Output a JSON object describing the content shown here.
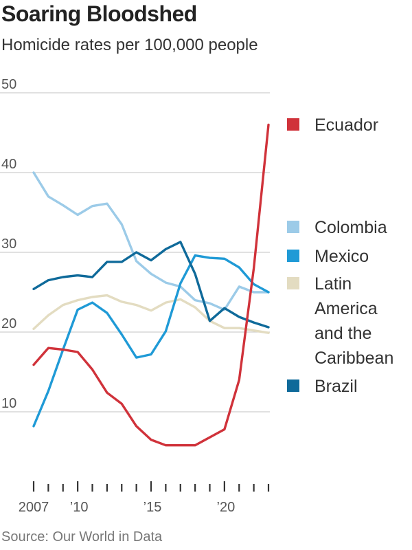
{
  "header": {
    "title": "Soaring Bloodshed",
    "subtitle": "Homicide rates per 100,000 people"
  },
  "footer": {
    "source": "Source: Our World in Data"
  },
  "chart_data": {
    "type": "line",
    "title": "Soaring Bloodshed",
    "subtitle": "Homicide rates per 100,000 people",
    "xlabel": "",
    "ylabel": "",
    "x": [
      2007,
      2008,
      2009,
      2010,
      2011,
      2012,
      2013,
      2014,
      2015,
      2016,
      2017,
      2018,
      2019,
      2020,
      2021,
      2022,
      2023
    ],
    "xlim": [
      2007,
      2023
    ],
    "ylim": [
      0,
      50
    ],
    "yticks": [
      10,
      20,
      30,
      40,
      50
    ],
    "ytick_labels": [
      "10",
      "20",
      "30",
      "40",
      "50"
    ],
    "xticks": [
      2007,
      2010,
      2015,
      2020
    ],
    "xtick_labels": [
      "2007",
      "’10",
      "’15",
      "’20"
    ],
    "grid": true,
    "legend_position": "right",
    "series": [
      {
        "name": "Ecuador",
        "color": "#d0323a",
        "values": [
          15.9,
          18.0,
          17.8,
          17.5,
          15.3,
          12.4,
          11.0,
          8.2,
          6.5,
          5.8,
          5.8,
          5.8,
          6.8,
          7.8,
          14.0,
          28.0,
          46.0
        ]
      },
      {
        "name": "Colombia",
        "color": "#9ccbe8",
        "values": [
          40.0,
          37.0,
          35.9,
          34.7,
          35.8,
          36.1,
          33.5,
          28.9,
          27.3,
          26.2,
          25.7,
          24.0,
          23.6,
          22.8,
          25.7,
          25.0,
          25.0
        ]
      },
      {
        "name": "Mexico",
        "color": "#1f9ad6",
        "values": [
          8.2,
          12.6,
          17.8,
          22.8,
          23.7,
          22.4,
          19.7,
          16.8,
          17.2,
          20.1,
          26.1,
          29.6,
          29.3,
          29.2,
          28.1,
          26.0,
          25.0
        ]
      },
      {
        "name": "Latin America and the Caribbean",
        "legend_lines": [
          "Latin",
          "America",
          "and the",
          "Caribbean"
        ],
        "color": "#e3dcc1",
        "values": [
          20.4,
          22.1,
          23.4,
          24.0,
          24.4,
          24.6,
          23.8,
          23.4,
          22.7,
          23.7,
          24.1,
          23.1,
          21.4,
          20.5,
          20.5,
          20.2,
          19.9
        ]
      },
      {
        "name": "Brazil",
        "color": "#0f6a9a",
        "values": [
          25.4,
          26.5,
          26.9,
          27.1,
          26.9,
          28.8,
          28.8,
          30.0,
          29.0,
          30.4,
          31.3,
          27.3,
          21.4,
          23.0,
          21.9,
          21.2,
          20.6
        ]
      }
    ],
    "legend_order": [
      "Ecuador",
      "Colombia",
      "Mexico",
      "Latin America and the Caribbean",
      "Brazil"
    ]
  }
}
